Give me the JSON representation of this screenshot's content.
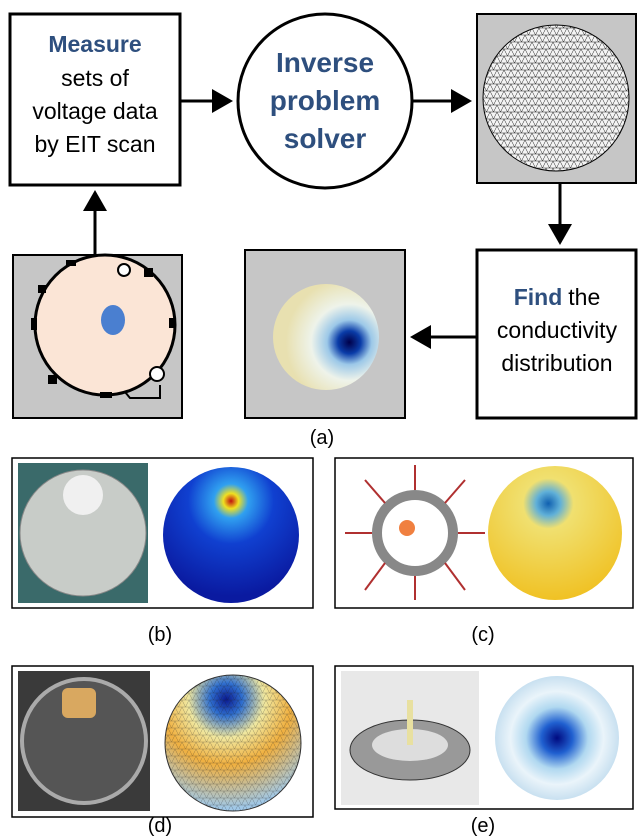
{
  "nodes": [
    {
      "highlight": "Measure",
      "lines": [
        "sets of",
        "voltage data",
        "by EIT scan"
      ]
    },
    {
      "lines": [
        "Inverse",
        "problem",
        "solver"
      ]
    },
    {
      "highlight": "Find",
      "rest": "the",
      "lines": [
        "conductivity",
        "distribution"
      ]
    }
  ],
  "captions": [
    "(a)",
    "(b)",
    "(c)",
    "(d)",
    "(e)"
  ]
}
